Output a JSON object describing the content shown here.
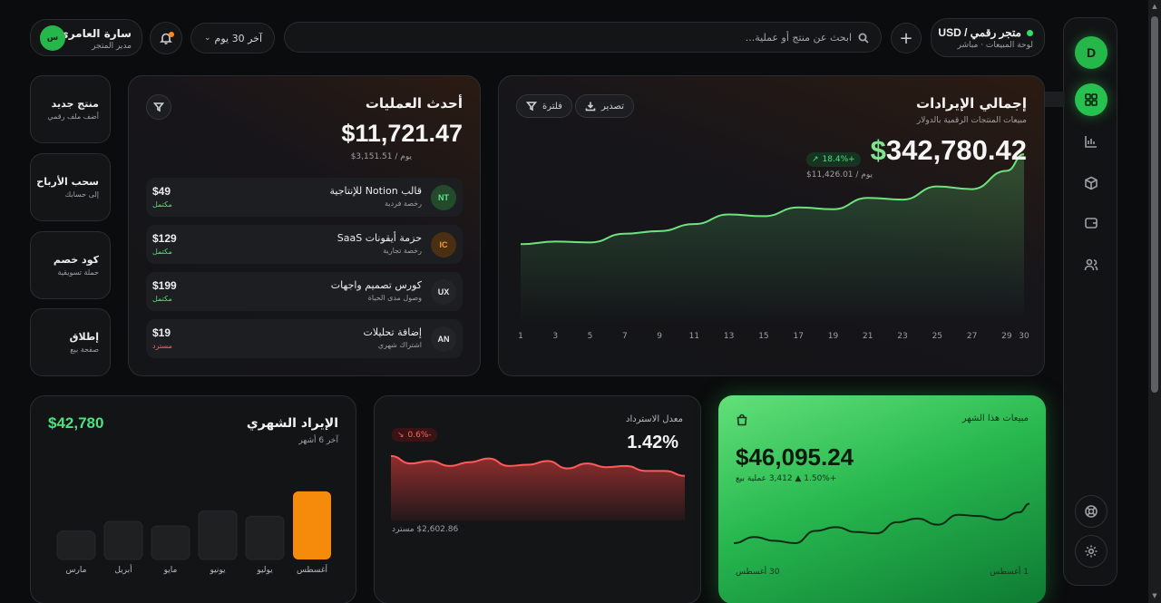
{
  "header": {
    "store_name": "متجر رقمي / USD",
    "store_sub": "لوحة المبيعات · مباشر",
    "search_placeholder": "ابحث عن منتج أو عملية...",
    "range_label": "آخر 30 يوم",
    "user_name": "سارة العامري",
    "user_role": "مدير المتجر",
    "user_initials": "س",
    "rail_avatar": "D"
  },
  "revenue": {
    "title": "إجمالي الإيرادات",
    "subtitle": "مبيعات المنتجات الرقمية بالدولار",
    "export_label": "تصدير",
    "filter_label": "فلترة",
    "total_currency": "$",
    "total_value": "342,780.42",
    "change": "+18.4%",
    "per_day": "$11,426.01 / يوم"
  },
  "transactions": {
    "title": "أحدث العمليات",
    "total": "$11,721.47",
    "per_day": "$3,151.51 / يوم",
    "rows": [
      {
        "initials": "NT",
        "name": "قالب Notion للإنتاجية",
        "type": "رخصة فردية",
        "amount": "$49",
        "status": "مكتمل"
      },
      {
        "initials": "IC",
        "name": "حزمة أيقونات SaaS",
        "type": "رخصة تجارية",
        "amount": "$129",
        "status": "مكتمل"
      },
      {
        "initials": "UX",
        "name": "كورس تصميم واجهات",
        "type": "وصول مدى الحياة",
        "amount": "$199",
        "status": "مكتمل"
      },
      {
        "initials": "AN",
        "name": "إضافة تحليلات",
        "type": "اشتراك شهري",
        "amount": "$19",
        "status": "مسترد"
      }
    ]
  },
  "quick_actions": [
    {
      "title": "منتج جديد",
      "desc": "أضف ملف رقمي"
    },
    {
      "title": "سحب الأرباح",
      "desc": "إلى حسابك"
    },
    {
      "title": "كود خصم",
      "desc": "حملة تسويقية"
    },
    {
      "title": "إطلاق",
      "desc": "صفحة بيع"
    }
  ],
  "monthly": {
    "title": "الإيراد الشهري",
    "subtitle": "آخر 6 أشهر",
    "amount": "$42,780"
  },
  "refund": {
    "label": "معدل الاسترداد",
    "rate": "1.42%",
    "change": "-0.6%",
    "note": "$2,602.86 مسترد"
  },
  "sales": {
    "label": "مبيعات هذا الشهر",
    "total": "$46,095.24",
    "sub": "+1.50% ▲ 3,412 عملية بيع",
    "date_start": "1 أغسطس",
    "date_end": "30 أغسطس"
  },
  "colors": {
    "accent_green": "#4ee07c",
    "accent_orange": "#f58a0b",
    "negative_red": "#ff6262"
  },
  "chart_data": [
    {
      "type": "area",
      "title": "إجمالي الإيرادات",
      "x": [
        1,
        3,
        5,
        7,
        9,
        11,
        13,
        15,
        17,
        19,
        21,
        23,
        25,
        27,
        29,
        30
      ],
      "x_ticks": [
        "1",
        "3",
        "5",
        "7",
        "9",
        "11",
        "13",
        "15",
        "17",
        "19",
        "21",
        "23",
        "25",
        "27",
        "29",
        "30"
      ],
      "values": [
        9.0,
        9.3,
        9.2,
        10.2,
        10.5,
        11.3,
        12.4,
        12.2,
        13.2,
        13.0,
        14.3,
        14.1,
        15.6,
        15.3,
        17.4,
        19.3
      ],
      "ylim": [
        0,
        22
      ],
      "grid": false
    },
    {
      "type": "bar",
      "title": "الإيراد الشهري",
      "categories": [
        "مارس",
        "أبريل",
        "مايو",
        "يونيو",
        "يوليو",
        "أغسطس"
      ],
      "values": [
        32,
        43,
        38,
        55,
        49,
        77
      ],
      "highlight_index": 5,
      "ylim": [
        0,
        80
      ]
    },
    {
      "type": "area",
      "title": "معدل الاسترداد",
      "x": [
        0,
        1,
        2,
        3,
        4,
        5,
        6,
        7,
        8,
        9,
        10,
        11,
        12,
        13,
        14,
        15
      ],
      "values": [
        2.6,
        2.3,
        2.4,
        2.2,
        2.35,
        2.5,
        2.2,
        2.25,
        2.4,
        2.1,
        2.3,
        2.15,
        2.2,
        2.0,
        2.0,
        1.8
      ],
      "ylim": [
        0,
        3
      ]
    },
    {
      "type": "line",
      "title": "مبيعات هذا الشهر",
      "x": [
        1,
        3,
        5,
        7,
        9,
        11,
        13,
        15,
        17,
        19,
        21,
        23,
        25,
        27,
        29,
        30
      ],
      "values": [
        1.1,
        1.6,
        1.3,
        1.1,
        2.1,
        2.4,
        2.0,
        1.9,
        2.8,
        3.1,
        2.6,
        3.4,
        3.3,
        3.0,
        3.6,
        4.3
      ],
      "ylim": [
        0,
        5
      ]
    }
  ]
}
